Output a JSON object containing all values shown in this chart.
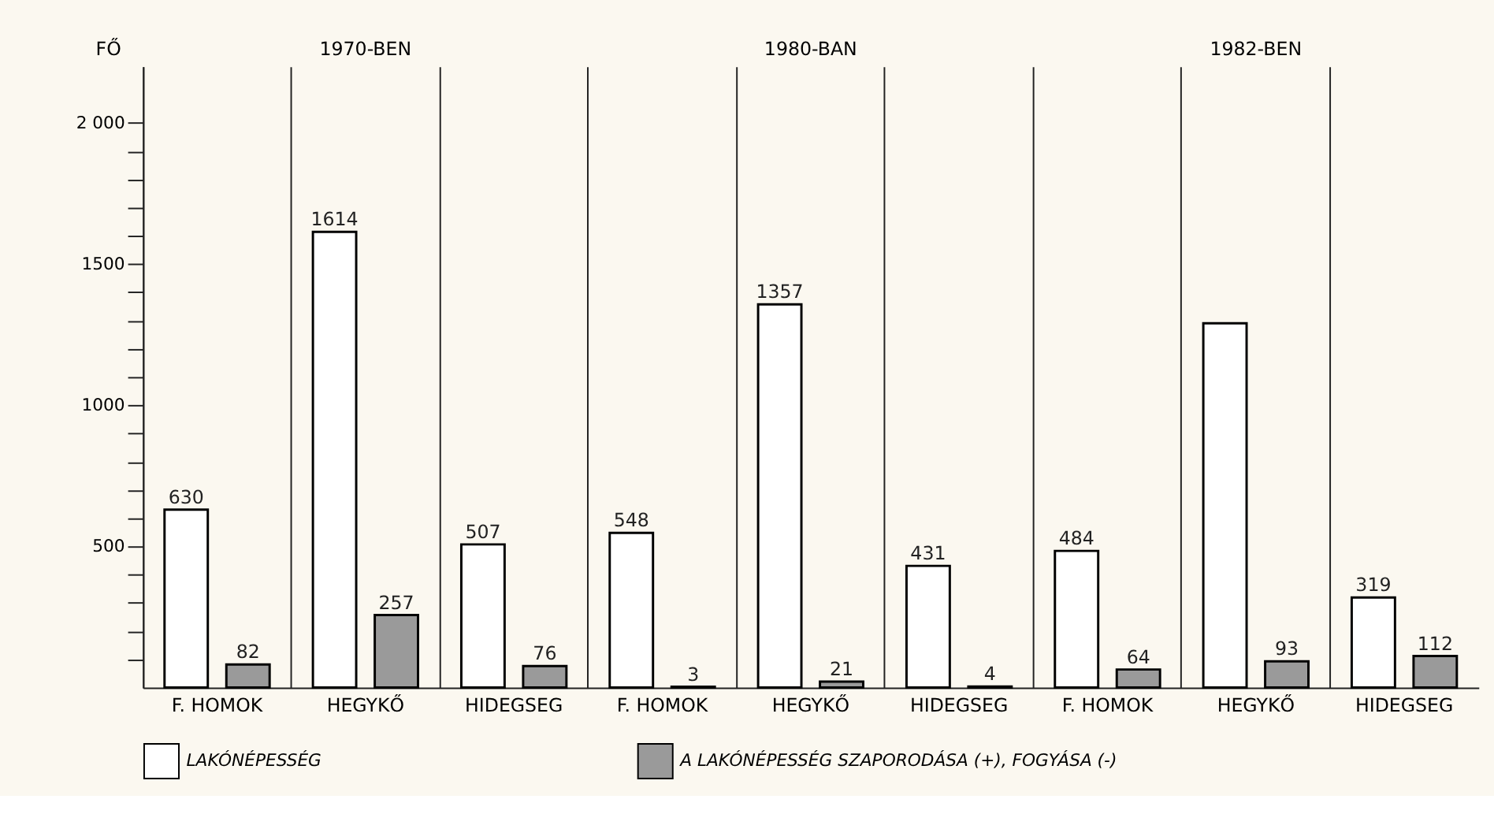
{
  "chart_data": {
    "type": "bar",
    "ylabel": "FŐ",
    "categories": [
      "F. HOMOK",
      "HEGYKŐ",
      "HIDEGSEG",
      "F. HOMOK",
      "HEGYKŐ",
      "HIDEGSEG",
      "F. HOMOK",
      "HEGYKŐ",
      "HIDEGSEG"
    ],
    "series": [
      {
        "name": "LAKÓNÉPESSÉG",
        "color": "#ffffff",
        "values": [
          630,
          1614,
          507,
          548,
          1357,
          431,
          484,
          1290,
          319
        ],
        "value_labels": [
          "630",
          "1614",
          "507",
          "548",
          "1357",
          "431",
          "484",
          null,
          "319"
        ]
      },
      {
        "name": "A LAKÓNÉPESSÉG SZAPORODÁSA (+), FOGYÁSA (-)",
        "color": "#9a9a9a",
        "values": [
          82,
          257,
          76,
          3,
          21,
          4,
          64,
          93,
          112
        ],
        "value_labels": [
          "82",
          "257",
          "76",
          "3",
          "21",
          "4",
          "64",
          "93",
          "112"
        ]
      }
    ],
    "ylim": [
      0,
      2200
    ],
    "yticks": [
      {
        "value": 100,
        "label": null
      },
      {
        "value": 200,
        "label": null
      },
      {
        "value": 300,
        "label": null
      },
      {
        "value": 400,
        "label": null
      },
      500,
      {
        "value": 600,
        "label": null
      },
      {
        "value": 700,
        "label": null
      },
      {
        "value": 800,
        "label": null
      },
      {
        "value": 900,
        "label": null
      },
      1000,
      {
        "value": 1100,
        "label": null
      },
      {
        "value": 1200,
        "label": null
      },
      {
        "value": 1300,
        "label": null
      },
      {
        "value": 1400,
        "label": null
      },
      1500,
      {
        "value": 1600,
        "label": null
      },
      {
        "value": 1700,
        "label": null
      },
      {
        "value": 1800,
        "label": null
      },
      {
        "value": 1900,
        "label": null
      },
      {
        "value": 2000,
        "label": "2 000"
      }
    ],
    "annotations": [
      "1970-BEN",
      "1980-BAN",
      "1982-BEN"
    ],
    "grid": "x",
    "legend": "bottom"
  }
}
